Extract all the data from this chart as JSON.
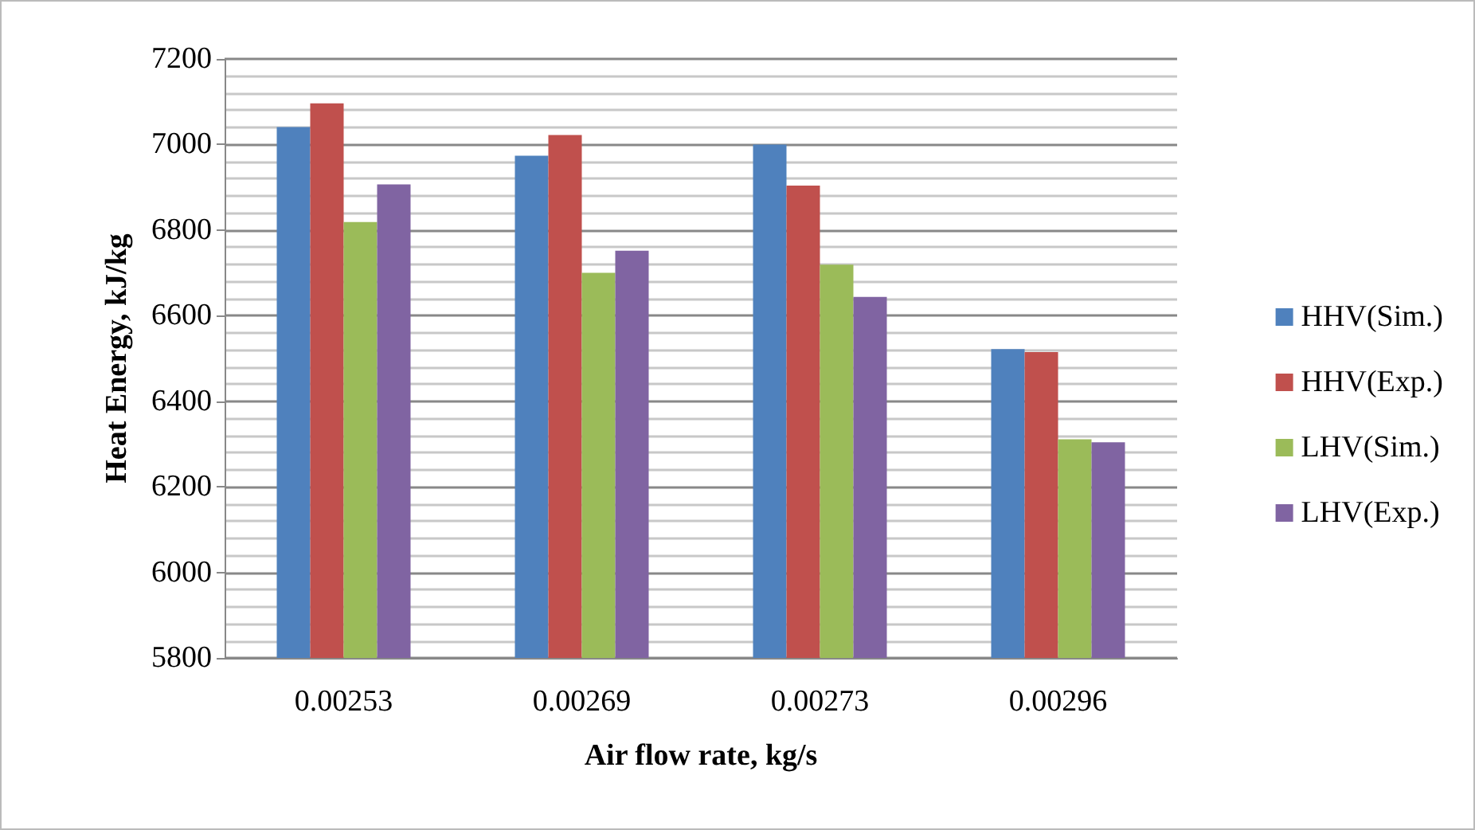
{
  "chart_data": {
    "type": "bar",
    "xlabel": "Air flow rate, kg/s",
    "ylabel": "Heat Energy, kJ/kg",
    "categories": [
      "0.00253",
      "0.00269",
      "0.00273",
      "0.00296"
    ],
    "series": [
      {
        "name": "HHV(Sim.)",
        "color": "#4f81bd",
        "values": [
          7041,
          6974,
          7000,
          6522
        ]
      },
      {
        "name": "HHV(Exp.)",
        "color": "#c0504d",
        "values": [
          7096,
          7022,
          6904,
          6515
        ]
      },
      {
        "name": "LHV(Sim.)",
        "color": "#9bbb59",
        "values": [
          6819,
          6700,
          6719,
          6311
        ]
      },
      {
        "name": "LHV(Exp.)",
        "color": "#8064a2",
        "values": [
          6907,
          6752,
          6644,
          6304
        ]
      }
    ],
    "ylim": [
      5800,
      7200
    ],
    "yticks": [
      5800,
      6000,
      6200,
      6400,
      6600,
      6800,
      7000,
      7200
    ],
    "grid": true,
    "legend": "right"
  }
}
